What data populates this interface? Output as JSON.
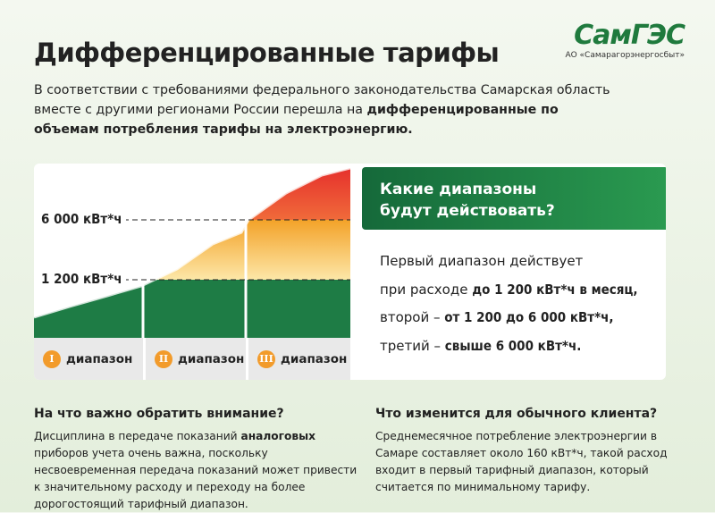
{
  "logo": {
    "name": "СамГЭС",
    "company": "АО «Самарагорэнергосбыт»"
  },
  "header": {
    "title": "Дифференцированные тарифы",
    "intro": {
      "plain": "В соответствии с требованиями федерального законодательства Самарская область вместе с другими регионами России перешла на",
      "bold": "дифференцированные по объемам потребления тарифы на электроэнергию."
    }
  },
  "diagram": {
    "thresholds": [
      "6 000 кВт*ч",
      "1 200 кВт*ч"
    ],
    "ranges": [
      {
        "number": "I",
        "label": "диапазон"
      },
      {
        "number": "II",
        "label": "диапазон"
      },
      {
        "number": "III",
        "label": "диапазон"
      }
    ]
  },
  "ranges_panel": {
    "heading": "Какие диапазоны будут действовать?",
    "lines": [
      {
        "plain": "Первый диапазон действует"
      },
      {
        "plain": "при расходе",
        "bold": "до 1 200 кВт*ч в месяц,"
      },
      {
        "plain": "второй –",
        "bold": "от 1 200 до 6 000 кВт*ч,"
      },
      {
        "plain": "третий –",
        "bold": "свыше 6 000 кВт*ч."
      }
    ]
  },
  "notes": [
    {
      "heading": "На что важно обратить внимание?",
      "before": "Дисциплина в передаче показаний",
      "bold": "аналоговых",
      "after": "приборов учета очень важна, поскольку несвоевременная передача показаний может привести к значительному расходу и переходу на более дорогостоящий тарифный диапазон."
    },
    {
      "heading": "Что изменится для обычного клиента?",
      "before": "Среднемесячное потребление электроэнергии в Самаре составляет около 160 кВт*ч, такой расход входит в первый тарифный диапазон, который считается по минимальному тарифу."
    }
  ]
}
